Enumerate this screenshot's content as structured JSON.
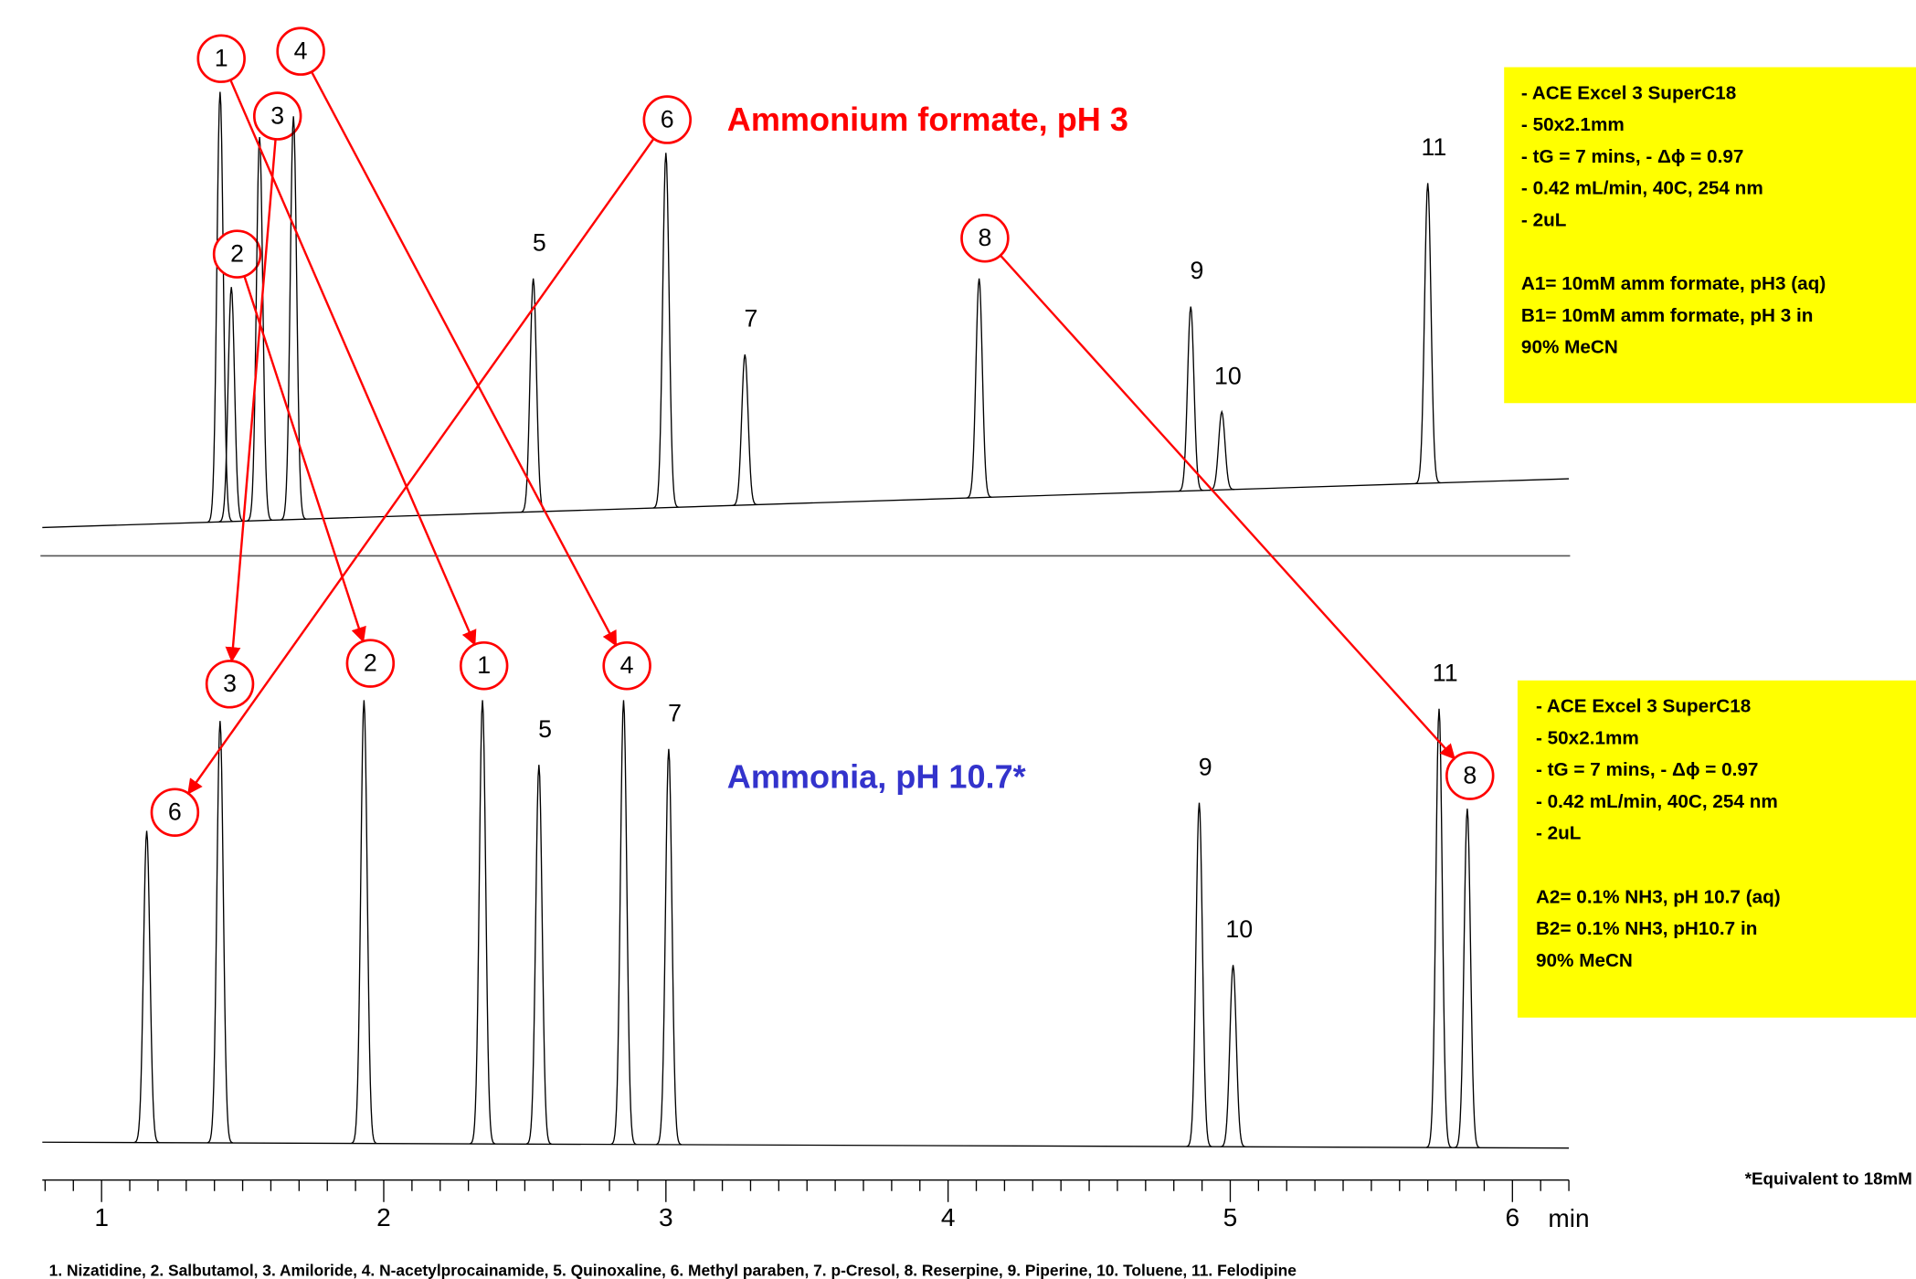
{
  "chart_data": {
    "type": "line",
    "xlim": [
      0.79,
      6.2
    ],
    "xticks": [
      1,
      2,
      3,
      4,
      5,
      6
    ],
    "minor_xticks": [
      0.8,
      0.9,
      1.1,
      1.2,
      1.3,
      1.4,
      1.5,
      1.6,
      1.7,
      1.8,
      1.9,
      2.1,
      2.2,
      2.3,
      2.4,
      2.5,
      2.6,
      2.7,
      2.8,
      2.9,
      3.1,
      3.2,
      3.3,
      3.4,
      3.5,
      3.6,
      3.7,
      3.8,
      3.9,
      4.1,
      4.2,
      4.3,
      4.4,
      4.5,
      4.6,
      4.7,
      4.8,
      4.9,
      5.1,
      5.2,
      5.3,
      5.4,
      5.5,
      5.6,
      5.7,
      5.8,
      5.9,
      6.1,
      6.2
    ],
    "x_label": "min",
    "ylim": [
      0,
      100
    ],
    "series": [
      {
        "name": "Ammonium formate, pH 3",
        "name_color": "#ff0000",
        "color": "#000000",
        "labels": [
          "1",
          "2",
          "3",
          "4",
          "5",
          "6",
          "7",
          "8",
          "9",
          "10",
          "11"
        ],
        "x": [
          1.42,
          1.46,
          1.56,
          1.68,
          2.53,
          3.0,
          3.28,
          4.11,
          4.86,
          4.97,
          5.7
        ],
        "values": [
          98.6,
          55.4,
          88.6,
          93.2,
          57.3,
          85.1,
          40.5,
          57.3,
          51.1,
          27.8,
          78.4
        ],
        "baseline": [
          2.2,
          13.0
        ]
      },
      {
        "name": "Ammonia, pH 10.7*",
        "name_color": "#3333cc",
        "color": "#000000",
        "labels": [
          "1",
          "2",
          "3",
          "4",
          "5",
          "6",
          "7",
          "8",
          "9",
          "10",
          "11"
        ],
        "x": [
          2.35,
          1.93,
          1.42,
          2.85,
          2.55,
          1.16,
          3.01,
          5.84,
          4.89,
          5.01,
          5.74
        ],
        "values": [
          100.5,
          100.5,
          95.9,
          100.5,
          86.2,
          71.6,
          89.7,
          76.5,
          77.8,
          41.9,
          98.6
        ],
        "baseline": [
          2.7,
          1.4
        ]
      }
    ],
    "notes": [
      {
        "conditions": [
          "- ACE Excel 3 SuperC18",
          "- 50x2.1mm",
          "- tG = 7 mins, - Δϕ = 0.97",
          "- 0.42 mL/min, 40C, 254 nm",
          "- 2uL"
        ],
        "mobile_phase": [
          "A1= 10mM amm formate, pH3 (aq)",
          "B1= 10mM amm formate, pH 3 in",
          "90% MeCN"
        ]
      },
      {
        "conditions": [
          "- ACE Excel 3 SuperC18",
          "- 50x2.1mm",
          "- tG = 7 mins, - Δϕ = 0.97",
          "- 0.42 mL/min, 40C, 254 nm",
          "- 2uL"
        ],
        "mobile_phase": [
          "A2= 0.1% NH3, pH 10.7 (aq)",
          "B2= 0.1% NH3, pH10.7 in",
          "90% MeCN"
        ]
      }
    ],
    "footnote": "*Equivalent to 18mM",
    "compound_list": "1. Nizatidine, 2. Salbutamol, 3. Amiloride, 4. N-acetylprocainamide, 5. Quinoxaline, 6. Methyl paraben, 7. p-Cresol, 8. Reserpine, 9. Piperine, 10. Toluene, 11. Felodipine"
  }
}
